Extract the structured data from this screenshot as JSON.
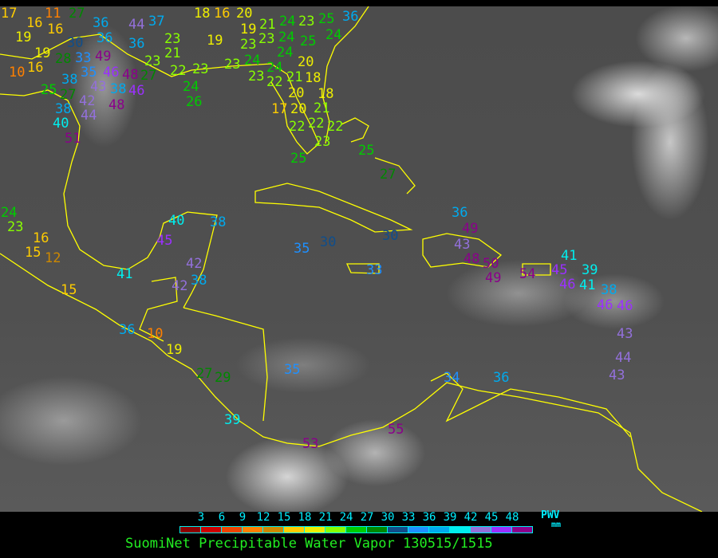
{
  "title": "SuomiNet Precipitable Water Vapor 130515/1515",
  "legend": {
    "unit_top": "PWV",
    "unit_bottom": "mm",
    "ticks": [
      "3",
      "6",
      "9",
      "12",
      "15",
      "18",
      "21",
      "24",
      "27",
      "30",
      "33",
      "36",
      "39",
      "42",
      "45",
      "48"
    ],
    "colors": [
      "#8b0000",
      "#cc0000",
      "#ee4400",
      "#ff8000",
      "#cc8800",
      "#ffcc00",
      "#eeee00",
      "#88ff00",
      "#00cc00",
      "#008800",
      "#104e8b",
      "#1e90ff",
      "#00aaee",
      "#00eeee",
      "#9370db",
      "#9b30ff",
      "#8b008b"
    ]
  },
  "map": {
    "coastline_color": "#ffff00",
    "stations": [
      "17",
      "11",
      "27",
      "36",
      "36",
      "44",
      "37",
      "16",
      "19",
      "16",
      "30",
      "19",
      "28",
      "33",
      "49",
      "10",
      "16",
      "35",
      "46",
      "48",
      "43",
      "38",
      "36",
      "27",
      "25",
      "27",
      "38",
      "48",
      "46",
      "38",
      "42",
      "44",
      "40",
      "51",
      "18",
      "16",
      "20",
      "19",
      "21",
      "24",
      "23",
      "25",
      "36",
      "19",
      "23",
      "24",
      "23",
      "24",
      "24",
      "25",
      "24",
      "23",
      "21",
      "23",
      "23",
      "22",
      "24",
      "26",
      "23",
      "23",
      "24",
      "22",
      "21",
      "20",
      "20",
      "18",
      "18",
      "21",
      "20",
      "17",
      "22",
      "22",
      "22",
      "23",
      "25",
      "25",
      "27",
      "24",
      "23",
      "40",
      "38",
      "45",
      "35",
      "30",
      "30",
      "36",
      "42",
      "41",
      "38",
      "42",
      "15",
      "16",
      "12",
      "15",
      "36",
      "10",
      "19",
      "27",
      "29",
      "35",
      "33",
      "43",
      "49",
      "48",
      "50",
      "49",
      "54",
      "45",
      "41",
      "46",
      "39",
      "41",
      "38",
      "46",
      "46",
      "43",
      "44",
      "43",
      "34",
      "36",
      "39",
      "55",
      "53"
    ]
  }
}
